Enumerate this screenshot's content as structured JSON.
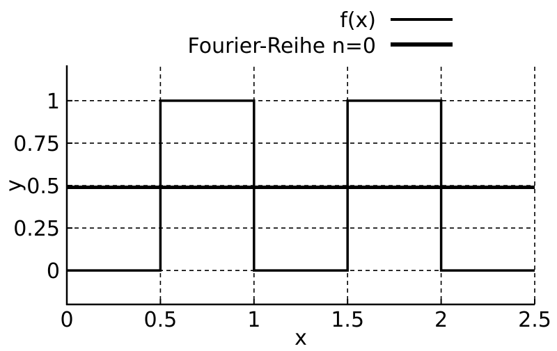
{
  "chart_data": {
    "type": "line",
    "xlabel": "x",
    "ylabel": "y",
    "xlim": [
      0,
      2.5
    ],
    "ylim": [
      -0.2,
      1.2
    ],
    "x_ticks": [
      0,
      0.5,
      1,
      1.5,
      2,
      2.5
    ],
    "y_ticks": [
      0,
      0.25,
      0.5,
      0.75,
      1
    ],
    "x_tick_labels": [
      "0",
      "0.5",
      "1",
      "1.5",
      "2",
      "2.5"
    ],
    "y_tick_labels": [
      "0",
      "0.25",
      "0.5",
      "0.75",
      "1"
    ],
    "grid": true,
    "grid_style": "dashed",
    "legend_position": "top-right, outside plot",
    "series": [
      {
        "name": "f(x)",
        "color": "#000000",
        "points": [
          [
            0,
            0
          ],
          [
            0.5,
            0
          ],
          [
            0.5,
            1
          ],
          [
            1,
            1
          ],
          [
            1,
            0
          ],
          [
            1.5,
            0
          ],
          [
            1.5,
            1
          ],
          [
            2,
            1
          ],
          [
            2,
            0
          ],
          [
            2.5,
            0
          ]
        ]
      },
      {
        "name": "Fourier-Reihe n=0",
        "color": "#000000",
        "points": [
          [
            0,
            0.49
          ],
          [
            2.5,
            0.49
          ]
        ]
      }
    ]
  }
}
